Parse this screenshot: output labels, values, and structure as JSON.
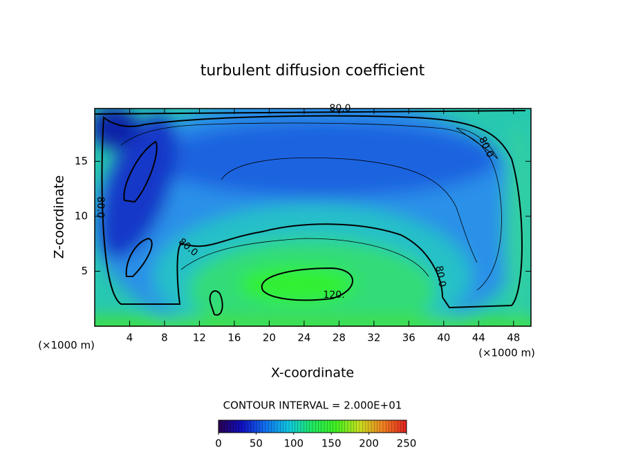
{
  "chart_data": {
    "type": "contour",
    "title": "turbulent diffusion coefficient",
    "xlabel": "X-coordinate",
    "ylabel": "Z-coordinate",
    "x_unit_label": "(×1000 m)",
    "y_unit_label": "(×1000 m)",
    "xlim": [
      0,
      50
    ],
    "ylim": [
      0,
      19.8
    ],
    "xticks": [
      4,
      8,
      12,
      16,
      20,
      24,
      28,
      32,
      36,
      40,
      44,
      48
    ],
    "yticks": [
      5,
      10,
      15
    ],
    "contour_labels": [
      "80.0",
      "80.0",
      "80.0",
      "80.0",
      "80.0",
      "120."
    ],
    "colorbar_label": "CONTOUR INTERVAL = 2.000E+01",
    "clim": [
      0,
      250
    ],
    "cticks": [
      0,
      50,
      100,
      150,
      200,
      250
    ],
    "colormap": [
      "#2a0050",
      "#1010c0",
      "#1070f0",
      "#10c8e0",
      "#20e860",
      "#40f020",
      "#c8e020",
      "#f08020",
      "#e02020"
    ]
  }
}
